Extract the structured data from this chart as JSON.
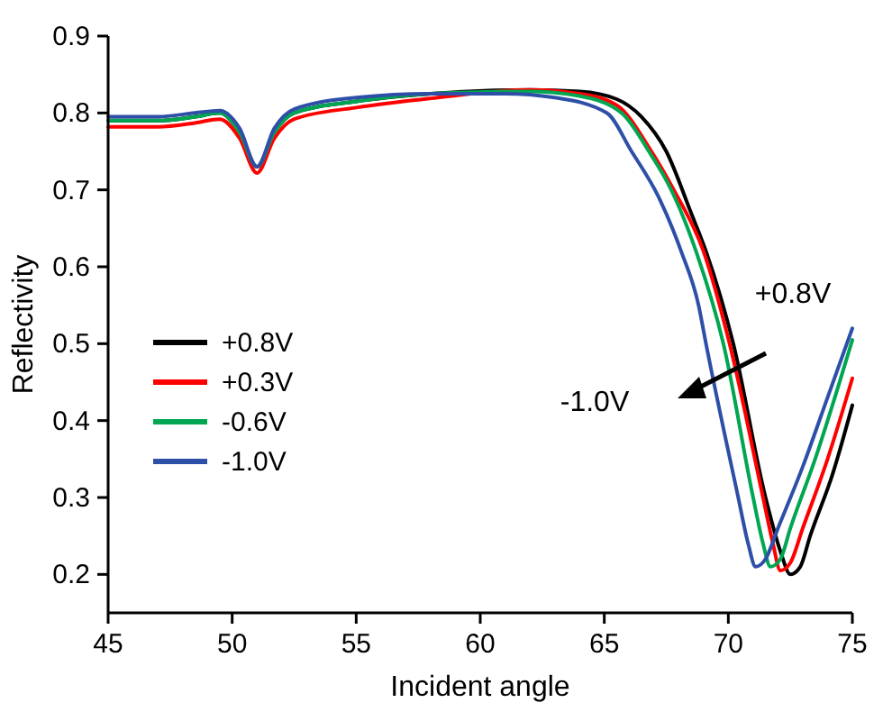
{
  "chart_data": {
    "type": "line",
    "xlabel": "Incident angle",
    "ylabel": "Reflectivity",
    "xlim": [
      45,
      75
    ],
    "ylim": [
      0.15,
      0.9
    ],
    "xticks": [
      45,
      50,
      55,
      60,
      65,
      70,
      75
    ],
    "yticks": [
      {
        "value": 0.2,
        "label": "0.2"
      },
      {
        "value": 0.3,
        "label": "0.3"
      },
      {
        "value": 0.4,
        "label": "0.4"
      },
      {
        "value": 0.5,
        "label": "0.5"
      },
      {
        "value": 0.6,
        "label": "0.6"
      },
      {
        "value": 0.7,
        "label": "0.7"
      },
      {
        "value": 0.8,
        "label": "0.8"
      },
      {
        "value": 0.9,
        "label": "0.9"
      }
    ],
    "grid": false,
    "legend": "left",
    "line_style": "solid",
    "annotations": [
      "+0.8V",
      "-1.0V"
    ],
    "series": [
      {
        "name": "+0.8V",
        "color": "#000000",
        "x": [
          45,
          47,
          48.5,
          49.5,
          50.3,
          51,
          51.7,
          52.5,
          55,
          58,
          62,
          64,
          65.5,
          66.5,
          67.5,
          68.5,
          69.1,
          70.2,
          71.5,
          72.1,
          72.5,
          72.9,
          73.3,
          74.2,
          75
        ],
        "values": [
          0.79,
          0.79,
          0.795,
          0.8,
          0.775,
          0.73,
          0.775,
          0.8,
          0.815,
          0.825,
          0.83,
          0.828,
          0.818,
          0.795,
          0.75,
          0.67,
          0.62,
          0.5,
          0.3,
          0.23,
          0.2,
          0.21,
          0.25,
          0.33,
          0.42
        ]
      },
      {
        "name": "+0.3V",
        "color": "#ff0000",
        "x": [
          45,
          47,
          48.5,
          49.5,
          50.3,
          51,
          51.7,
          52.5,
          55,
          58,
          62,
          64,
          65.5,
          66.9,
          67.8,
          69,
          70.05,
          71.4,
          71.8,
          72.1,
          72.5,
          73,
          74,
          75
        ],
        "values": [
          0.782,
          0.782,
          0.787,
          0.792,
          0.767,
          0.722,
          0.767,
          0.792,
          0.807,
          0.819,
          0.83,
          0.825,
          0.81,
          0.75,
          0.7,
          0.62,
          0.5,
          0.3,
          0.24,
          0.205,
          0.215,
          0.26,
          0.35,
          0.455
        ]
      },
      {
        "name": "-0.6V",
        "color": "#00a651",
        "x": [
          45,
          47,
          48.5,
          49.5,
          50.3,
          51,
          51.7,
          52.5,
          55,
          58,
          62,
          64,
          65.7,
          66.8,
          67.7,
          68.7,
          69.8,
          71,
          71.4,
          71.7,
          72.1,
          72.5,
          73.5,
          75
        ],
        "values": [
          0.79,
          0.79,
          0.795,
          0.8,
          0.775,
          0.73,
          0.775,
          0.8,
          0.815,
          0.825,
          0.828,
          0.822,
          0.8,
          0.75,
          0.7,
          0.62,
          0.5,
          0.3,
          0.24,
          0.21,
          0.22,
          0.26,
          0.35,
          0.505
        ]
      },
      {
        "name": "-1.0V",
        "color": "#2e4fa8",
        "x": [
          45,
          47,
          48.5,
          49.5,
          50.3,
          51,
          51.7,
          52.5,
          55,
          58,
          61,
          63,
          65.1,
          66.1,
          67.2,
          68.1,
          68.8,
          69.1,
          70.4,
          70.8,
          71.1,
          71.5,
          72,
          73,
          74,
          75
        ],
        "values": [
          0.795,
          0.795,
          0.8,
          0.803,
          0.78,
          0.73,
          0.78,
          0.805,
          0.82,
          0.825,
          0.825,
          0.82,
          0.8,
          0.75,
          0.69,
          0.62,
          0.55,
          0.5,
          0.3,
          0.24,
          0.21,
          0.22,
          0.26,
          0.34,
          0.43,
          0.52
        ]
      }
    ]
  }
}
